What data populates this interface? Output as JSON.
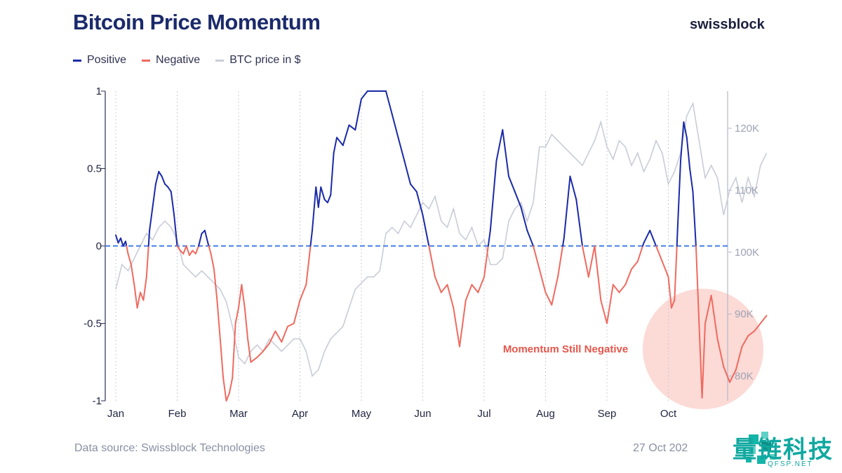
{
  "header": {
    "title": "Bitcoin Price Momentum",
    "brand": "swissblock"
  },
  "legend": [
    {
      "label": "Positive",
      "color": "#1a2aa8"
    },
    {
      "label": "Negative",
      "color": "#ef6a5f"
    },
    {
      "label": "BTC price in $",
      "color": "#c9ccd8"
    }
  ],
  "footer": {
    "source": "Data source: Swissblock Technologies",
    "date": "27 Oct 202"
  },
  "watermark": {
    "text": "量链科技",
    "sub": "QFSP.NET"
  },
  "chart_data": {
    "type": "line",
    "title": "Bitcoin Price Momentum",
    "x_ticks": [
      "Jan",
      "Feb",
      "Mar",
      "Apr",
      "May",
      "Jun",
      "Jul",
      "Aug",
      "Sep",
      "Oct"
    ],
    "y_left": {
      "ticks": [
        1,
        0.5,
        0,
        -0.5,
        -1
      ],
      "tick_labels": [
        "1",
        "0.5",
        "0",
        "-0.5",
        "-1"
      ],
      "ylim": [
        -1,
        1
      ]
    },
    "y_right": {
      "ticks": [
        120,
        110,
        100,
        90,
        80
      ],
      "tick_labels": [
        "120K",
        "110K",
        "100K",
        "90K",
        "80K"
      ],
      "ylim": [
        76,
        126
      ]
    },
    "zero_line_color": "#5a8de8",
    "annotation": {
      "text": "Momentum Still Negative",
      "color": "#e4574b"
    },
    "series": [
      {
        "name": "Momentum",
        "axis": "left",
        "positive_color": "#1a2aa8",
        "negative_color": "#ef6a5f",
        "x": [
          0,
          0.04,
          0.08,
          0.12,
          0.16,
          0.2,
          0.25,
          0.3,
          0.35,
          0.4,
          0.45,
          0.5,
          0.55,
          0.6,
          0.65,
          0.7,
          0.75,
          0.8,
          0.85,
          0.9,
          0.95,
          1.0,
          1.05,
          1.1,
          1.15,
          1.2,
          1.25,
          1.3,
          1.35,
          1.4,
          1.45,
          1.5,
          1.55,
          1.6,
          1.65,
          1.7,
          1.75,
          1.8,
          1.85,
          1.9,
          1.95,
          2.0,
          2.05,
          2.1,
          2.15,
          2.2,
          2.3,
          2.4,
          2.5,
          2.6,
          2.7,
          2.8,
          2.9,
          3.0,
          3.1,
          3.2,
          3.26,
          3.3,
          3.34,
          3.4,
          3.45,
          3.5,
          3.55,
          3.6,
          3.7,
          3.8,
          3.9,
          4.0,
          4.1,
          4.2,
          4.3,
          4.4,
          4.5,
          4.6,
          4.7,
          4.8,
          4.9,
          5.0,
          5.1,
          5.2,
          5.3,
          5.4,
          5.5,
          5.6,
          5.7,
          5.8,
          5.9,
          6.0,
          6.1,
          6.2,
          6.3,
          6.4,
          6.5,
          6.6,
          6.7,
          6.8,
          6.9,
          7.0,
          7.1,
          7.2,
          7.3,
          7.4,
          7.5,
          7.6,
          7.7,
          7.8,
          7.9,
          8.0,
          8.1,
          8.2,
          8.3,
          8.4,
          8.5,
          8.6,
          8.7,
          8.8,
          8.9,
          9.0,
          9.05,
          9.1,
          9.15,
          9.2,
          9.25,
          9.3,
          9.35,
          9.4,
          9.45,
          9.5,
          9.55,
          9.6,
          9.7,
          9.8,
          9.9,
          10.0,
          10.1,
          10.2,
          10.3,
          10.4,
          10.5,
          10.6
        ],
        "y": [
          0.07,
          0.02,
          0.05,
          0.0,
          0.03,
          -0.05,
          -0.12,
          -0.25,
          -0.4,
          -0.3,
          -0.35,
          -0.2,
          0.1,
          0.25,
          0.4,
          0.48,
          0.45,
          0.4,
          0.38,
          0.35,
          0.2,
          0.0,
          -0.03,
          -0.05,
          0.0,
          -0.06,
          -0.03,
          -0.05,
          0.0,
          0.08,
          0.1,
          0.02,
          -0.05,
          -0.15,
          -0.35,
          -0.6,
          -0.85,
          -1.0,
          -0.95,
          -0.85,
          -0.5,
          -0.4,
          -0.25,
          -0.4,
          -0.6,
          -0.75,
          -0.72,
          -0.68,
          -0.63,
          -0.55,
          -0.62,
          -0.52,
          -0.5,
          -0.35,
          -0.25,
          0.1,
          0.38,
          0.25,
          0.38,
          0.3,
          0.28,
          0.33,
          0.6,
          0.7,
          0.65,
          0.78,
          0.75,
          0.95,
          1.0,
          1.0,
          1.0,
          1.0,
          0.85,
          0.7,
          0.55,
          0.4,
          0.35,
          0.2,
          0.0,
          -0.2,
          -0.3,
          -0.25,
          -0.4,
          -0.65,
          -0.35,
          -0.25,
          -0.3,
          -0.2,
          0.1,
          0.55,
          0.75,
          0.45,
          0.35,
          0.25,
          0.1,
          0.0,
          -0.15,
          -0.3,
          -0.38,
          -0.2,
          0.05,
          0.45,
          0.3,
          0.0,
          -0.2,
          0.0,
          -0.35,
          -0.5,
          -0.25,
          -0.3,
          -0.25,
          -0.15,
          -0.1,
          0.02,
          0.1,
          0.0,
          -0.1,
          -0.2,
          -0.4,
          -0.35,
          0.1,
          0.55,
          0.8,
          0.7,
          0.5,
          0.35,
          0.0,
          -0.5,
          -0.98,
          -0.5,
          -0.32,
          -0.6,
          -0.78,
          -0.88,
          -0.8,
          -0.65,
          -0.58,
          -0.55,
          -0.5,
          -0.45
        ]
      },
      {
        "name": "BTC price in $",
        "axis": "right",
        "color": "#c9ccd8",
        "x": [
          0.0,
          0.1,
          0.2,
          0.3,
          0.4,
          0.5,
          0.6,
          0.7,
          0.8,
          0.9,
          1.0,
          1.1,
          1.2,
          1.3,
          1.4,
          1.5,
          1.6,
          1.7,
          1.8,
          1.9,
          2.0,
          2.1,
          2.2,
          2.3,
          2.4,
          2.5,
          2.6,
          2.7,
          2.8,
          2.9,
          3.0,
          3.1,
          3.2,
          3.3,
          3.4,
          3.5,
          3.6,
          3.7,
          3.8,
          3.9,
          4.0,
          4.1,
          4.2,
          4.3,
          4.4,
          4.5,
          4.6,
          4.7,
          4.8,
          4.9,
          5.0,
          5.1,
          5.2,
          5.3,
          5.4,
          5.5,
          5.6,
          5.7,
          5.8,
          5.9,
          6.0,
          6.1,
          6.2,
          6.3,
          6.4,
          6.5,
          6.6,
          6.7,
          6.8,
          6.9,
          7.0,
          7.1,
          7.2,
          7.3,
          7.4,
          7.5,
          7.6,
          7.7,
          7.8,
          7.9,
          8.0,
          8.1,
          8.2,
          8.3,
          8.4,
          8.5,
          8.6,
          8.7,
          8.8,
          8.9,
          9.0,
          9.1,
          9.2,
          9.3,
          9.4,
          9.5,
          9.6,
          9.7,
          9.8,
          9.9,
          10.0,
          10.1,
          10.2,
          10.3,
          10.4,
          10.5,
          10.6
        ],
        "y": [
          94,
          98,
          97,
          99,
          101,
          103,
          102,
          104,
          105,
          104,
          102,
          98,
          97,
          96,
          97,
          96,
          95,
          94,
          92,
          88,
          83,
          82,
          84,
          85,
          84,
          86,
          85,
          84,
          85,
          86,
          86,
          84,
          80,
          81,
          84,
          86,
          87,
          88,
          91,
          94,
          95,
          96,
          96,
          97,
          103,
          104,
          103,
          105,
          104,
          106,
          108,
          107,
          109,
          105,
          104,
          107,
          103,
          102,
          104,
          101,
          102,
          98,
          98,
          99,
          105,
          107,
          108,
          105,
          108,
          117,
          117,
          119,
          118,
          117,
          116,
          115,
          114,
          116,
          118,
          121,
          117,
          115,
          118,
          117,
          114,
          116,
          113,
          115,
          118,
          116,
          111,
          113,
          116,
          122,
          124,
          118,
          112,
          114,
          112,
          106,
          110,
          112,
          108,
          112,
          109,
          114,
          116
        ]
      }
    ]
  }
}
